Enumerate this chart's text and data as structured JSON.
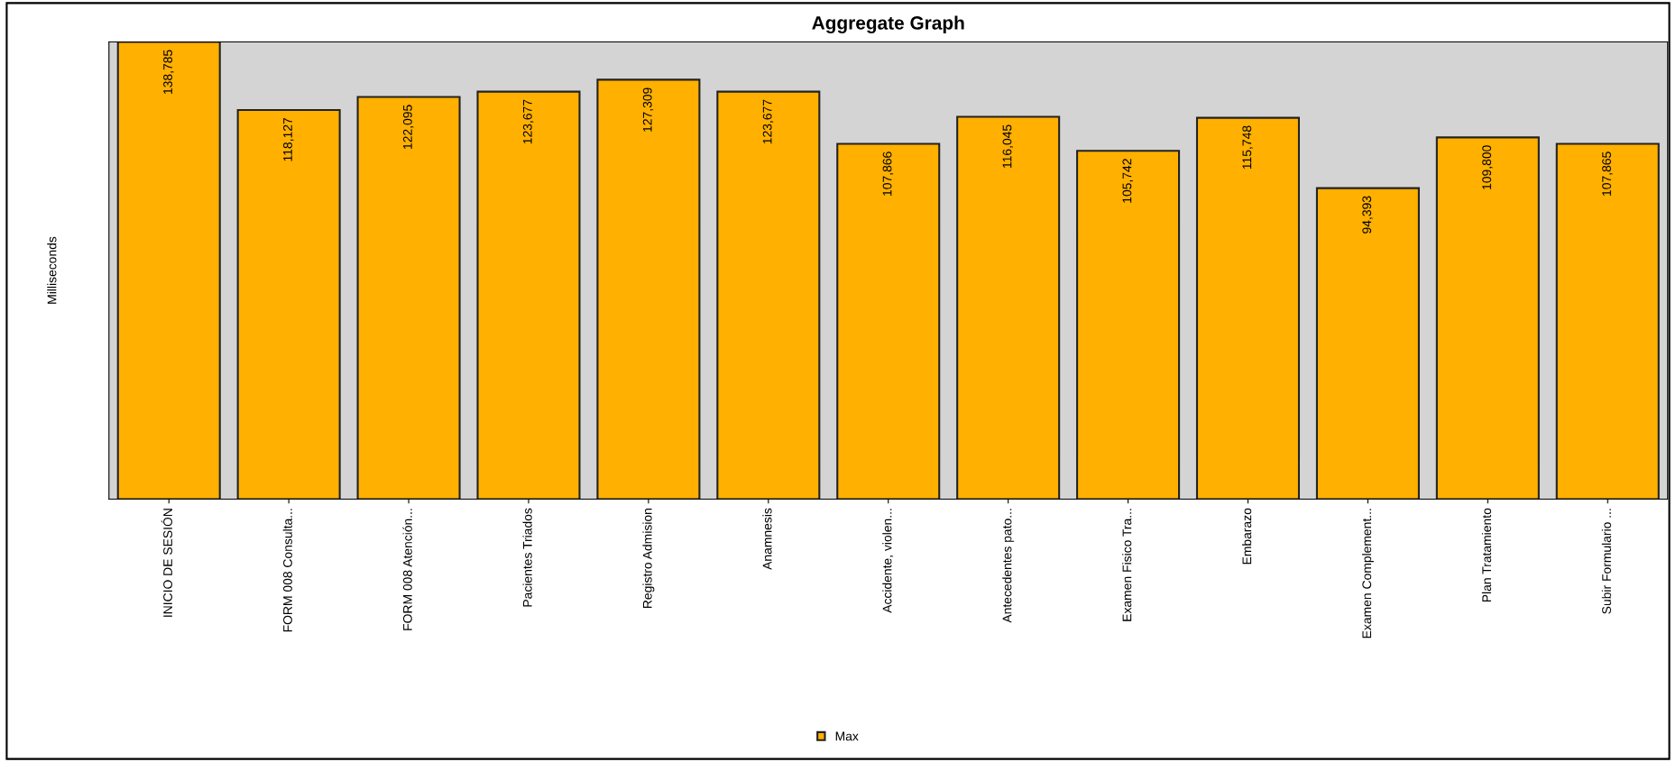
{
  "chart_data": {
    "type": "bar",
    "title": "Aggregate Graph",
    "ylabel": "Milliseconds",
    "categories": [
      "INICIO DE SESIÓN",
      "FORM 008 Consulta...",
      "FORM 008 Atención...",
      "Pacientes Triados",
      "Registro Admision",
      "Anamnesis",
      "Accidente, violen...",
      "Antecedentes pato...",
      "Examen Fisico Tra...",
      "Embarazo",
      "Examen Complement...",
      "Plan Tratamiento",
      "Subir Formulario ..."
    ],
    "series": [
      {
        "name": "Max",
        "color": "#ffb000",
        "values": [
          138785,
          118127,
          122095,
          123677,
          127309,
          123677,
          107866,
          116045,
          105742,
          115748,
          94393,
          109800,
          107865
        ],
        "value_labels": [
          "138,785",
          "118,127",
          "122,095",
          "123,677",
          "127,309",
          "123,677",
          "107,866",
          "116,045",
          "105,742",
          "115,748",
          "94,393",
          "109,800",
          "107,865"
        ]
      }
    ],
    "tick_labels": "x",
    "legend": "bottom"
  }
}
